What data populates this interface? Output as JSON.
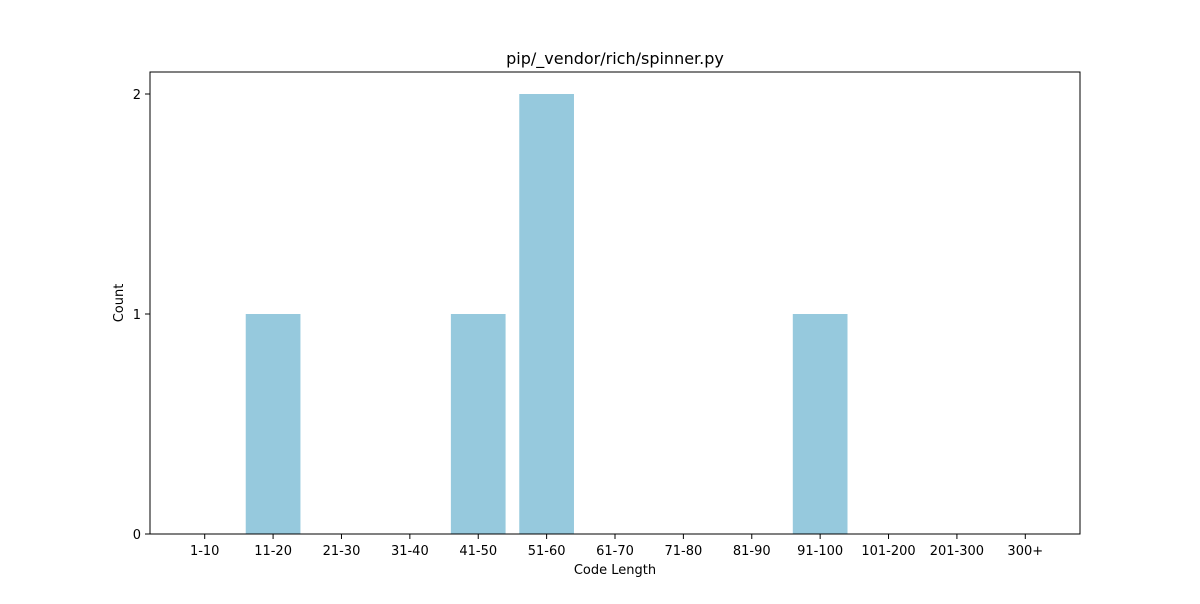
{
  "chart_data": {
    "type": "bar",
    "title": "pip/_vendor/rich/spinner.py",
    "xlabel": "Code Length",
    "ylabel": "Count",
    "categories": [
      "1-10",
      "11-20",
      "21-30",
      "31-40",
      "41-50",
      "51-60",
      "61-70",
      "71-80",
      "81-90",
      "91-100",
      "101-200",
      "201-300",
      "300+"
    ],
    "values": [
      0,
      1,
      0,
      0,
      1,
      2,
      0,
      0,
      0,
      1,
      0,
      0,
      0
    ],
    "ylim": [
      0,
      2.1
    ],
    "yticks": [
      0,
      1,
      2
    ],
    "bar_color": "#96c9dd",
    "grid": false,
    "legend": "none"
  }
}
